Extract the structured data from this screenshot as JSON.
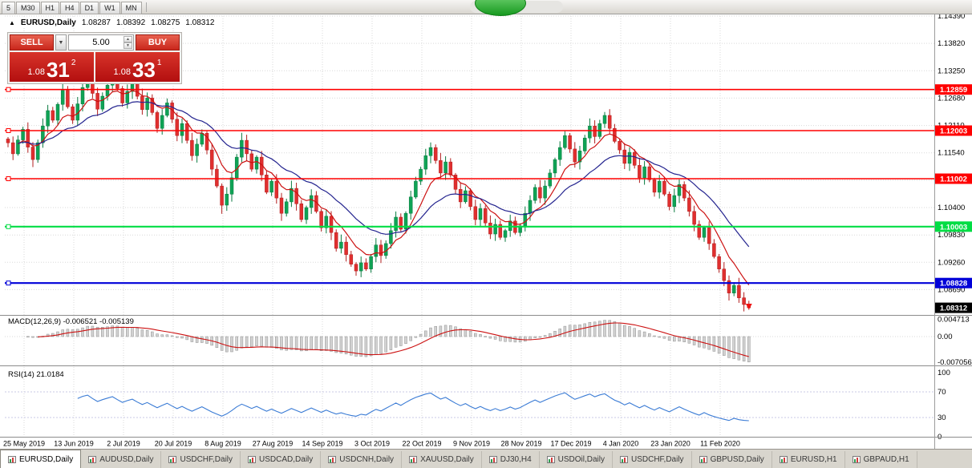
{
  "toolbar": {
    "timeframes": [
      "5",
      "M30",
      "H1",
      "H4",
      "D1",
      "W1",
      "MN"
    ]
  },
  "info_bar": {
    "arrow": "▲",
    "symbol": "EURUSD,Daily",
    "open": "1.08287",
    "high": "1.08392",
    "low": "1.08275",
    "close": "1.08312"
  },
  "trade_panel": {
    "sell_label": "SELL",
    "buy_label": "BUY",
    "volume": "5.00",
    "dropdown_arrow": "▼",
    "spin_up": "▲",
    "spin_down": "▼",
    "sell_price": {
      "small": "1.08",
      "big": "31",
      "sup": "2"
    },
    "buy_price": {
      "small": "1.08",
      "big": "33",
      "sup": "1"
    }
  },
  "chart_data": {
    "type": "candlestick",
    "symbol": "EURUSD",
    "timeframe": "Daily",
    "x_labels": [
      "25 May 2019",
      "13 Jun 2019",
      "2 Jul 2019",
      "20 Jul 2019",
      "8 Aug 2019",
      "27 Aug 2019",
      "14 Sep 2019",
      "3 Oct 2019",
      "22 Oct 2019",
      "9 Nov 2019",
      "28 Nov 2019",
      "17 Dec 2019",
      "4 Jan 2020",
      "23 Jan 2020",
      "11 Feb 2020"
    ],
    "y_axis": {
      "labels": [
        "1.14390",
        "1.13820",
        "1.13250",
        "1.12680",
        "1.12110",
        "1.11540",
        "1.10970",
        "1.10400",
        "1.09830",
        "1.09260",
        "1.08690"
      ],
      "top": 1.1439,
      "bottom": 1.0818
    },
    "closes": [
      1.1175,
      1.1152,
      1.1181,
      1.1203,
      1.1166,
      1.114,
      1.1175,
      1.121,
      1.1242,
      1.1222,
      1.1255,
      1.1284,
      1.125,
      1.1222,
      1.1256,
      1.129,
      1.1312,
      1.1278,
      1.1245,
      1.1272,
      1.1295,
      1.1318,
      1.1288,
      1.1258,
      1.1282,
      1.1302,
      1.1272,
      1.1244,
      1.1268,
      1.1238,
      1.1205,
      1.1232,
      1.1258,
      1.1224,
      1.119,
      1.1215,
      1.118,
      1.1148,
      1.1172,
      1.1195,
      1.116,
      1.112,
      1.1085,
      1.1045,
      1.1068,
      1.1102,
      1.1145,
      1.118,
      1.1152,
      1.112,
      1.1145,
      1.1108,
      1.1072,
      1.1095,
      1.106,
      1.1028,
      1.1052,
      1.108,
      1.1048,
      1.1015,
      1.104,
      1.1065,
      1.1032,
      1.0998,
      1.1022,
      1.0988,
      1.0955,
      1.0968,
      1.0942,
      1.0922,
      1.0908,
      1.0925,
      1.0912,
      1.0938,
      1.0962,
      1.094,
      1.0965,
      1.0992,
      1.102,
      1.0995,
      1.1028,
      1.1062,
      1.1095,
      1.112,
      1.1148,
      1.1165,
      1.1138,
      1.1112,
      1.1135,
      1.1108,
      1.1078,
      1.1052,
      1.1075,
      1.1042,
      1.1015,
      1.1038,
      1.1008,
      1.0985,
      1.1005,
      1.0978,
      1.0992,
      1.1012,
      1.0988,
      1.1002,
      1.1028,
      1.1055,
      1.1082,
      1.106,
      1.1085,
      1.1112,
      1.114,
      1.1165,
      1.119,
      1.1162,
      1.1135,
      1.1158,
      1.1185,
      1.121,
      1.1188,
      1.1215,
      1.1232,
      1.1205,
      1.1178,
      1.116,
      1.1132,
      1.1155,
      1.1128,
      1.1102,
      1.1125,
      1.1098,
      1.1072,
      1.1095,
      1.1068,
      1.1042,
      1.1065,
      1.1088,
      1.106,
      1.1032,
      1.1005,
      1.0978,
      1.0998,
      1.0965,
      1.0938,
      1.0912,
      1.0888,
      1.0862,
      1.0878,
      1.0852,
      1.0838,
      1.08312
    ],
    "extremes": [
      {
        "i": 21,
        "h": 1.1334
      },
      {
        "i": 43,
        "l": 1.1027
      },
      {
        "i": 70,
        "l": 1.0898
      },
      {
        "i": 120,
        "h": 1.1239
      },
      {
        "i": 149,
        "l": 1.0827
      }
    ],
    "moving_averages": [
      {
        "period": 8,
        "color": "#cc1111"
      },
      {
        "period": 21,
        "color": "#24248f"
      }
    ],
    "hlines": [
      {
        "price": 1.12859,
        "label": "1.12859",
        "color": "#ff0000",
        "width": 1.6
      },
      {
        "price": 1.12003,
        "label": "1.12003",
        "color": "#ff0000",
        "width": 1.6
      },
      {
        "price": 1.11002,
        "label": "1.11002",
        "color": "#ff0000",
        "width": 1.6
      },
      {
        "price": 1.10003,
        "label": "1.10003",
        "color": "#00dd44",
        "width": 2.2
      },
      {
        "price": 1.08828,
        "label": "1.08828",
        "color": "#0000d8",
        "width": 2.2
      }
    ],
    "last_price": {
      "value": 1.08312,
      "label": "1.08312",
      "color": "#000000"
    },
    "sell_arrow": {
      "index": 149,
      "color": "#ee1111"
    },
    "indicators": [
      {
        "name": "MACD",
        "label": "MACD(12,26,9) -0.006521 -0.005139",
        "params": [
          12,
          26,
          9
        ],
        "values": [
          -0.006521,
          -0.005139
        ],
        "axis_labels": [
          {
            "text": "0.004713",
            "v": 0.004713
          },
          {
            "text": "0.00",
            "v": 0
          },
          {
            "text": "-0.007056",
            "v": -0.007056
          }
        ],
        "bar_color": "#d2d2d2",
        "bar_stroke": "#8f8f8f",
        "signal_color": "#cc1111"
      },
      {
        "name": "RSI",
        "label": "RSI(14) 21.0184",
        "period": 14,
        "value": 21.0184,
        "axis_labels": [
          {
            "text": "100",
            "v": 100
          },
          {
            "text": "70",
            "v": 70
          },
          {
            "text": "30",
            "v": 30
          },
          {
            "text": "0",
            "v": 0
          }
        ],
        "levels": [
          70,
          30
        ],
        "line_color": "#3a7bd5"
      }
    ]
  },
  "tabs": {
    "active_index": 0,
    "items": [
      "EURUSD,Daily",
      "AUDUSD,Daily",
      "USDCHF,Daily",
      "USDCAD,Daily",
      "USDCNH,Daily",
      "XAUUSD,Daily",
      "DJ30,H4",
      "USDOil,Daily",
      "USDCHF,Daily",
      "GBPUSD,Daily",
      "EURUSD,H1",
      "GBPAUD,H1"
    ]
  }
}
